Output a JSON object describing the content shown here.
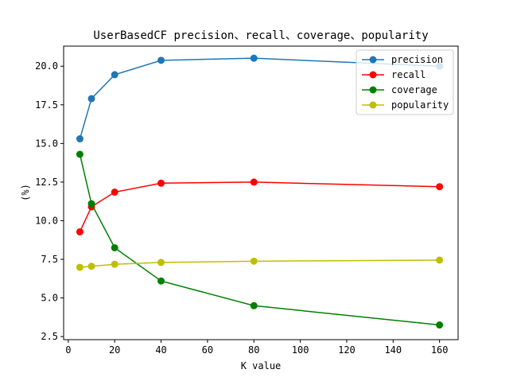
{
  "chart_data": {
    "type": "line",
    "title": "UserBasedCF precision、recall、coverage、popularity",
    "xlabel": "K value",
    "ylabel": "(%)",
    "x": [
      5,
      10,
      20,
      40,
      80,
      160
    ],
    "xlim": [
      -2,
      168
    ],
    "ylim": [
      2.3,
      21.3
    ],
    "xticks": [
      0,
      20,
      40,
      60,
      80,
      100,
      120,
      140,
      160
    ],
    "yticks": [
      2.5,
      5.0,
      7.5,
      10.0,
      12.5,
      15.0,
      17.5,
      20.0
    ],
    "legend_position": "top-right",
    "grid": false,
    "series": [
      {
        "name": "precision",
        "color": "#1f77b4",
        "values": [
          15.3,
          17.9,
          19.45,
          20.38,
          20.52,
          20.0
        ]
      },
      {
        "name": "recall",
        "color": "#ff0000",
        "values": [
          9.28,
          10.9,
          11.85,
          12.43,
          12.5,
          12.2
        ]
      },
      {
        "name": "coverage",
        "color": "#008000",
        "values": [
          14.3,
          11.1,
          8.25,
          6.1,
          4.5,
          3.25
        ]
      },
      {
        "name": "popularity",
        "color": "#bfbf00",
        "values": [
          6.98,
          7.05,
          7.18,
          7.3,
          7.38,
          7.45
        ]
      }
    ]
  }
}
